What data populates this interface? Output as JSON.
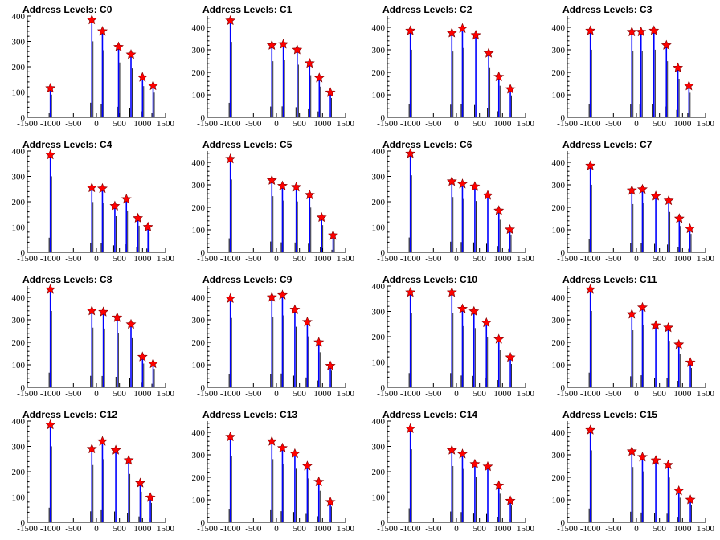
{
  "figure": {
    "panel_rows": 4,
    "panel_cols": 4,
    "colors": {
      "spike": "#0000ff",
      "pedestal": "#000000",
      "marker": "#ff0000",
      "axis": "#000000"
    }
  },
  "chart_data": [
    {
      "type": "bar",
      "title": "Address Levels: C0",
      "xlabel": "",
      "ylabel": "",
      "xlim": [
        -1500,
        1500
      ],
      "ylim": [
        0,
        400
      ],
      "xticks": [
        "-1500",
        "-1000",
        "-500",
        "0",
        "500",
        "1000",
        "1500"
      ],
      "yticks": [
        "0",
        "100",
        "200",
        "300",
        "400"
      ],
      "peaks": [
        {
          "x": -1000,
          "y": 115
        },
        {
          "x": -100,
          "y": 385
        },
        {
          "x": 130,
          "y": 340
        },
        {
          "x": 480,
          "y": 278
        },
        {
          "x": 750,
          "y": 248
        },
        {
          "x": 1000,
          "y": 158
        },
        {
          "x": 1230,
          "y": 125
        }
      ]
    },
    {
      "type": "bar",
      "title": "Address Levels: C1",
      "xlabel": "",
      "ylabel": "",
      "xlim": [
        -1500,
        1500
      ],
      "ylim": [
        0,
        450
      ],
      "xticks": [
        "-1500",
        "-1000",
        "-500",
        "0",
        "500",
        "1000",
        "1500"
      ],
      "yticks": [
        "0",
        "100",
        "200",
        "300",
        "400"
      ],
      "peaks": [
        {
          "x": -1000,
          "y": 430
        },
        {
          "x": -100,
          "y": 320
        },
        {
          "x": 150,
          "y": 325
        },
        {
          "x": 450,
          "y": 300
        },
        {
          "x": 720,
          "y": 240
        },
        {
          "x": 930,
          "y": 175
        },
        {
          "x": 1170,
          "y": 110
        }
      ]
    },
    {
      "type": "bar",
      "title": "Address Levels: C2",
      "xlabel": "",
      "ylabel": "",
      "xlim": [
        -1500,
        1500
      ],
      "ylim": [
        0,
        450
      ],
      "xticks": [
        "-1500",
        "-1000",
        "-500",
        "0",
        "500",
        "1000",
        "1500"
      ],
      "yticks": [
        "0",
        "100",
        "200",
        "300",
        "400"
      ],
      "peaks": [
        {
          "x": -1000,
          "y": 385
        },
        {
          "x": -100,
          "y": 375
        },
        {
          "x": 130,
          "y": 395
        },
        {
          "x": 420,
          "y": 365
        },
        {
          "x": 700,
          "y": 285
        },
        {
          "x": 920,
          "y": 180
        },
        {
          "x": 1170,
          "y": 125
        }
      ]
    },
    {
      "type": "bar",
      "title": "Address Levels: C3",
      "xlabel": "",
      "ylabel": "",
      "xlim": [
        -1500,
        1500
      ],
      "ylim": [
        0,
        450
      ],
      "xticks": [
        "-1500",
        "-1000",
        "-500",
        "0",
        "500",
        "1000",
        "1500"
      ],
      "yticks": [
        "0",
        "100",
        "200",
        "300",
        "400"
      ],
      "peaks": [
        {
          "x": -1000,
          "y": 385
        },
        {
          "x": -100,
          "y": 380
        },
        {
          "x": 100,
          "y": 380
        },
        {
          "x": 380,
          "y": 385
        },
        {
          "x": 650,
          "y": 320
        },
        {
          "x": 900,
          "y": 220
        },
        {
          "x": 1140,
          "y": 140
        }
      ]
    },
    {
      "type": "bar",
      "title": "Address Levels: C4",
      "xlabel": "",
      "ylabel": "",
      "xlim": [
        -1500,
        1500
      ],
      "ylim": [
        0,
        400
      ],
      "xticks": [
        "-1500",
        "-1000",
        "-500",
        "0",
        "500",
        "1000",
        "1500"
      ],
      "yticks": [
        "0",
        "100",
        "200",
        "300",
        "400"
      ],
      "peaks": [
        {
          "x": -1000,
          "y": 385
        },
        {
          "x": -100,
          "y": 255
        },
        {
          "x": 130,
          "y": 252
        },
        {
          "x": 400,
          "y": 183
        },
        {
          "x": 650,
          "y": 210
        },
        {
          "x": 900,
          "y": 135
        },
        {
          "x": 1120,
          "y": 100
        }
      ]
    },
    {
      "type": "bar",
      "title": "Address Levels: C5",
      "xlabel": "",
      "ylabel": "",
      "xlim": [
        -1500,
        1500
      ],
      "ylim": [
        0,
        450
      ],
      "xticks": [
        "-1500",
        "-1000",
        "-500",
        "0",
        "500",
        "1000",
        "1500"
      ],
      "yticks": [
        "0",
        "100",
        "200",
        "300",
        "400"
      ],
      "peaks": [
        {
          "x": -1000,
          "y": 415
        },
        {
          "x": -100,
          "y": 320
        },
        {
          "x": 130,
          "y": 295
        },
        {
          "x": 430,
          "y": 290
        },
        {
          "x": 720,
          "y": 255
        },
        {
          "x": 980,
          "y": 155
        },
        {
          "x": 1230,
          "y": 75
        }
      ]
    },
    {
      "type": "bar",
      "title": "Address Levels: C6",
      "xlabel": "",
      "ylabel": "",
      "xlim": [
        -1500,
        1500
      ],
      "ylim": [
        0,
        400
      ],
      "xticks": [
        "-1500",
        "-1000",
        "-500",
        "0",
        "500",
        "1000",
        "1500"
      ],
      "yticks": [
        "0",
        "100",
        "200",
        "300",
        "400"
      ],
      "peaks": [
        {
          "x": -1000,
          "y": 390
        },
        {
          "x": -100,
          "y": 280
        },
        {
          "x": 130,
          "y": 270
        },
        {
          "x": 400,
          "y": 260
        },
        {
          "x": 680,
          "y": 225
        },
        {
          "x": 920,
          "y": 165
        },
        {
          "x": 1160,
          "y": 90
        }
      ]
    },
    {
      "type": "bar",
      "title": "Address Levels: C7",
      "xlabel": "",
      "ylabel": "",
      "xlim": [
        -1500,
        1500
      ],
      "ylim": [
        0,
        450
      ],
      "xticks": [
        "-1500",
        "-1000",
        "-500",
        "0",
        "500",
        "1000",
        "1500"
      ],
      "yticks": [
        "0",
        "100",
        "200",
        "300",
        "400"
      ],
      "peaks": [
        {
          "x": -1000,
          "y": 385
        },
        {
          "x": -100,
          "y": 275
        },
        {
          "x": 130,
          "y": 280
        },
        {
          "x": 420,
          "y": 250
        },
        {
          "x": 700,
          "y": 230
        },
        {
          "x": 930,
          "y": 150
        },
        {
          "x": 1160,
          "y": 105
        }
      ]
    },
    {
      "type": "bar",
      "title": "Address Levels: C8",
      "xlabel": "",
      "ylabel": "",
      "xlim": [
        -1500,
        1500
      ],
      "ylim": [
        0,
        450
      ],
      "xticks": [
        "-1500",
        "-1000",
        "-500",
        "0",
        "500",
        "1000",
        "1500"
      ],
      "yticks": [
        "0",
        "100",
        "200",
        "300",
        "400"
      ],
      "peaks": [
        {
          "x": -1000,
          "y": 435
        },
        {
          "x": -100,
          "y": 340
        },
        {
          "x": 150,
          "y": 335
        },
        {
          "x": 450,
          "y": 310
        },
        {
          "x": 750,
          "y": 280
        },
        {
          "x": 1000,
          "y": 135
        },
        {
          "x": 1230,
          "y": 105
        }
      ]
    },
    {
      "type": "bar",
      "title": "Address Levels: C9",
      "xlabel": "",
      "ylabel": "",
      "xlim": [
        -1500,
        1500
      ],
      "ylim": [
        0,
        450
      ],
      "xticks": [
        "-1500",
        "-1000",
        "-500",
        "0",
        "500",
        "1000",
        "1500"
      ],
      "yticks": [
        "0",
        "100",
        "200",
        "300",
        "400"
      ],
      "peaks": [
        {
          "x": -1000,
          "y": 395
        },
        {
          "x": -100,
          "y": 400
        },
        {
          "x": 130,
          "y": 410
        },
        {
          "x": 400,
          "y": 345
        },
        {
          "x": 670,
          "y": 290
        },
        {
          "x": 920,
          "y": 200
        },
        {
          "x": 1170,
          "y": 95
        }
      ]
    },
    {
      "type": "bar",
      "title": "Address Levels: C10",
      "xlabel": "",
      "ylabel": "",
      "xlim": [
        -1500,
        1500
      ],
      "ylim": [
        0,
        400
      ],
      "xticks": [
        "-1500",
        "-1000",
        "-500",
        "0",
        "500",
        "1000",
        "1500"
      ],
      "yticks": [
        "0",
        "100",
        "200",
        "300",
        "400"
      ],
      "peaks": [
        {
          "x": -1000,
          "y": 375
        },
        {
          "x": -100,
          "y": 375
        },
        {
          "x": 130,
          "y": 310
        },
        {
          "x": 380,
          "y": 300
        },
        {
          "x": 650,
          "y": 255
        },
        {
          "x": 920,
          "y": 190
        },
        {
          "x": 1170,
          "y": 118
        }
      ]
    },
    {
      "type": "bar",
      "title": "Address Levels: C11",
      "xlabel": "",
      "ylabel": "",
      "xlim": [
        -1500,
        1500
      ],
      "ylim": [
        0,
        450
      ],
      "xticks": [
        "-1500",
        "-1000",
        "-500",
        "0",
        "500",
        "1000",
        "1500"
      ],
      "yticks": [
        "0",
        "100",
        "200",
        "300",
        "400"
      ],
      "peaks": [
        {
          "x": -1000,
          "y": 435
        },
        {
          "x": -100,
          "y": 325
        },
        {
          "x": 130,
          "y": 355
        },
        {
          "x": 420,
          "y": 275
        },
        {
          "x": 690,
          "y": 265
        },
        {
          "x": 920,
          "y": 190
        },
        {
          "x": 1170,
          "y": 110
        }
      ]
    },
    {
      "type": "bar",
      "title": "Address Levels: C12",
      "xlabel": "",
      "ylabel": "",
      "xlim": [
        -1500,
        1500
      ],
      "ylim": [
        0,
        400
      ],
      "xticks": [
        "-1500",
        "-1000",
        "-500",
        "0",
        "500",
        "1000",
        "1500"
      ],
      "yticks": [
        "0",
        "100",
        "200",
        "300",
        "400"
      ],
      "peaks": [
        {
          "x": -1000,
          "y": 385
        },
        {
          "x": -100,
          "y": 290
        },
        {
          "x": 130,
          "y": 320
        },
        {
          "x": 420,
          "y": 285
        },
        {
          "x": 700,
          "y": 245
        },
        {
          "x": 950,
          "y": 155
        },
        {
          "x": 1170,
          "y": 98
        }
      ]
    },
    {
      "type": "bar",
      "title": "Address Levels: C13",
      "xlabel": "",
      "ylabel": "",
      "xlim": [
        -1500,
        1500
      ],
      "ylim": [
        0,
        450
      ],
      "xticks": [
        "-1500",
        "-1000",
        "-500",
        "0",
        "500",
        "1000",
        "1500"
      ],
      "yticks": [
        "0",
        "100",
        "200",
        "300",
        "400"
      ],
      "peaks": [
        {
          "x": -1000,
          "y": 380
        },
        {
          "x": -100,
          "y": 360
        },
        {
          "x": 130,
          "y": 330
        },
        {
          "x": 400,
          "y": 305
        },
        {
          "x": 670,
          "y": 250
        },
        {
          "x": 920,
          "y": 180
        },
        {
          "x": 1170,
          "y": 90
        }
      ]
    },
    {
      "type": "bar",
      "title": "Address Levels: C14",
      "xlabel": "",
      "ylabel": "",
      "xlim": [
        -1500,
        1500
      ],
      "ylim": [
        0,
        400
      ],
      "xticks": [
        "-1500",
        "-1000",
        "-500",
        "0",
        "500",
        "1000",
        "1500"
      ],
      "yticks": [
        "0",
        "100",
        "200",
        "300",
        "400"
      ],
      "peaks": [
        {
          "x": -1000,
          "y": 370
        },
        {
          "x": -100,
          "y": 285
        },
        {
          "x": 130,
          "y": 270
        },
        {
          "x": 400,
          "y": 230
        },
        {
          "x": 680,
          "y": 220
        },
        {
          "x": 920,
          "y": 145
        },
        {
          "x": 1170,
          "y": 85
        }
      ]
    },
    {
      "type": "bar",
      "title": "Address Levels: C15",
      "xlabel": "",
      "ylabel": "",
      "xlim": [
        -1500,
        1500
      ],
      "ylim": [
        0,
        450
      ],
      "xticks": [
        "-1500",
        "-1000",
        "-500",
        "0",
        "500",
        "1000",
        "1500"
      ],
      "yticks": [
        "0",
        "100",
        "200",
        "300",
        "400"
      ],
      "peaks": [
        {
          "x": -1000,
          "y": 410
        },
        {
          "x": -100,
          "y": 315
        },
        {
          "x": 130,
          "y": 290
        },
        {
          "x": 420,
          "y": 275
        },
        {
          "x": 690,
          "y": 255
        },
        {
          "x": 920,
          "y": 140
        },
        {
          "x": 1170,
          "y": 100
        }
      ]
    }
  ]
}
